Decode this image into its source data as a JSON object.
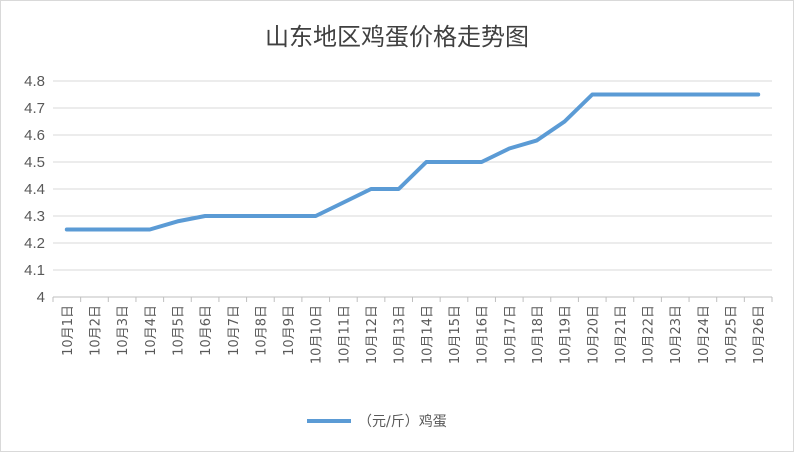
{
  "chart_data": {
    "type": "line",
    "title": "山东地区鸡蛋价格走势图",
    "xlabel": "",
    "ylabel": "",
    "ylim": [
      4,
      4.8
    ],
    "yticks": [
      "4",
      "4.1",
      "4.2",
      "4.3",
      "4.4",
      "4.5",
      "4.6",
      "4.7",
      "4.8"
    ],
    "categories": [
      "10月1日",
      "10月2日",
      "10月3日",
      "10月4日",
      "10月5日",
      "10月6日",
      "10月7日",
      "10月8日",
      "10月9日",
      "10月10日",
      "10月11日",
      "10月12日",
      "10月13日",
      "10月14日",
      "10月15日",
      "10月16日",
      "10月17日",
      "10月18日",
      "10月19日",
      "10月20日",
      "10月21日",
      "10月22日",
      "10月23日",
      "10月24日",
      "10月25日",
      "10月26日"
    ],
    "series": [
      {
        "name": "（元/斤）鸡蛋",
        "color": "#5b9bd5",
        "values": [
          4.25,
          4.25,
          4.25,
          4.25,
          4.28,
          4.3,
          4.3,
          4.3,
          4.3,
          4.3,
          4.35,
          4.4,
          4.4,
          4.5,
          4.5,
          4.5,
          4.55,
          4.58,
          4.65,
          4.75,
          4.75,
          4.75,
          4.75,
          4.75,
          4.75,
          4.75
        ]
      }
    ],
    "grid": true,
    "legend": "bottom"
  }
}
